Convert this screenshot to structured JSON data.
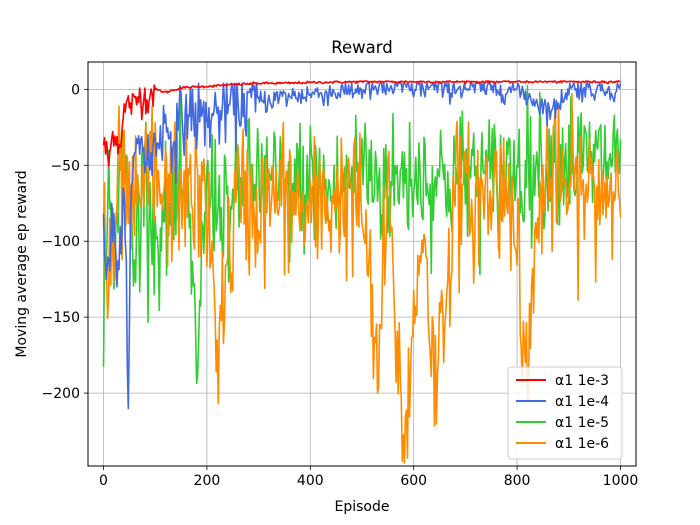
{
  "chart_data": {
    "type": "line",
    "title": "Reward",
    "xlabel": "Episode",
    "ylabel": "Moving average ep reward",
    "xlim": [
      -30,
      1030
    ],
    "ylim": [
      -248,
      18
    ],
    "xticks": [
      0,
      200,
      400,
      600,
      800,
      1000
    ],
    "yticks": [
      0,
      -50,
      -100,
      -150,
      -200
    ],
    "grid": true,
    "legend_position": "lower-right",
    "series": [
      {
        "name": "α1 1e-3",
        "color": "#ff0000",
        "points": [
          [
            0,
            -35
          ],
          [
            10,
            -48
          ],
          [
            20,
            -25
          ],
          [
            30,
            -38
          ],
          [
            40,
            -15
          ],
          [
            50,
            -8
          ],
          [
            60,
            -12
          ],
          [
            70,
            -3
          ],
          [
            80,
            -6
          ],
          [
            100,
            0
          ],
          [
            120,
            -2
          ],
          [
            150,
            1
          ],
          [
            200,
            2
          ],
          [
            250,
            3
          ],
          [
            300,
            4
          ],
          [
            350,
            4
          ],
          [
            400,
            4.5
          ],
          [
            500,
            5
          ],
          [
            600,
            5
          ],
          [
            700,
            5
          ],
          [
            800,
            5
          ],
          [
            900,
            5
          ],
          [
            1000,
            5
          ]
        ]
      },
      {
        "name": "α1 1e-4",
        "color": "#4169e1",
        "points": [
          [
            0,
            -70
          ],
          [
            5,
            -120
          ],
          [
            15,
            -95
          ],
          [
            30,
            -110
          ],
          [
            40,
            -80
          ],
          [
            47,
            -185
          ],
          [
            55,
            -60
          ],
          [
            70,
            -30
          ],
          [
            90,
            -50
          ],
          [
            110,
            -25
          ],
          [
            140,
            -30
          ],
          [
            160,
            -15
          ],
          [
            200,
            -20
          ],
          [
            250,
            -10
          ],
          [
            300,
            -8
          ],
          [
            350,
            -5
          ],
          [
            400,
            -3
          ],
          [
            450,
            -2
          ],
          [
            500,
            0
          ],
          [
            600,
            1
          ],
          [
            700,
            1
          ],
          [
            800,
            0
          ],
          [
            870,
            -15
          ],
          [
            900,
            1
          ],
          [
            1000,
            0
          ]
        ]
      },
      {
        "name": "α1 1e-5",
        "color": "#32cd32",
        "points": [
          [
            0,
            -190
          ],
          [
            5,
            -60
          ],
          [
            20,
            -100
          ],
          [
            40,
            -45
          ],
          [
            60,
            -110
          ],
          [
            80,
            -50
          ],
          [
            100,
            -100
          ],
          [
            130,
            -80
          ],
          [
            160,
            -70
          ],
          [
            180,
            -175
          ],
          [
            200,
            -65
          ],
          [
            250,
            -80
          ],
          [
            300,
            -55
          ],
          [
            350,
            -70
          ],
          [
            400,
            -60
          ],
          [
            450,
            -70
          ],
          [
            500,
            -50
          ],
          [
            550,
            -65
          ],
          [
            600,
            -55
          ],
          [
            650,
            -60
          ],
          [
            700,
            -55
          ],
          [
            750,
            -60
          ],
          [
            800,
            -50
          ],
          [
            850,
            -50
          ],
          [
            900,
            -45
          ],
          [
            950,
            -50
          ],
          [
            1000,
            -40
          ]
        ]
      },
      {
        "name": "α1 1e-6",
        "color": "#ff8c00",
        "points": [
          [
            0,
            -70
          ],
          [
            10,
            -150
          ],
          [
            30,
            -60
          ],
          [
            60,
            -90
          ],
          [
            90,
            -50
          ],
          [
            120,
            -75
          ],
          [
            150,
            -60
          ],
          [
            200,
            -80
          ],
          [
            220,
            -165
          ],
          [
            260,
            -70
          ],
          [
            300,
            -80
          ],
          [
            350,
            -70
          ],
          [
            400,
            -85
          ],
          [
            450,
            -70
          ],
          [
            500,
            -75
          ],
          [
            530,
            -190
          ],
          [
            550,
            -70
          ],
          [
            580,
            -235
          ],
          [
            620,
            -80
          ],
          [
            640,
            -200
          ],
          [
            680,
            -70
          ],
          [
            720,
            -75
          ],
          [
            760,
            -65
          ],
          [
            800,
            -70
          ],
          [
            810,
            -200
          ],
          [
            850,
            -60
          ],
          [
            900,
            -65
          ],
          [
            950,
            -70
          ],
          [
            1000,
            -60
          ]
        ]
      }
    ]
  }
}
